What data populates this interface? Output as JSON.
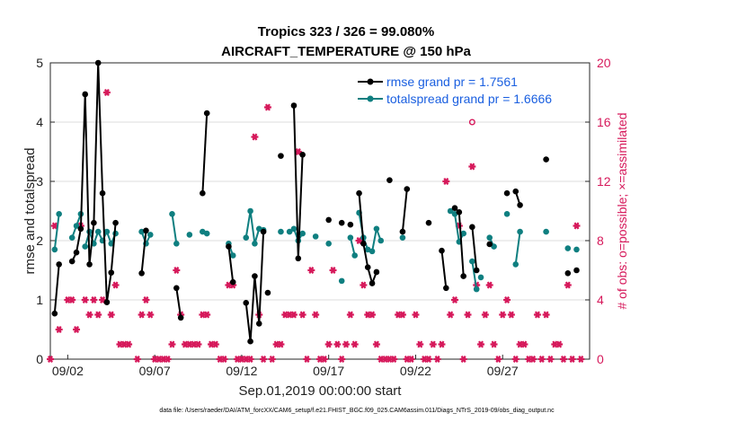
{
  "chart_data": {
    "type": "line",
    "title": "Tropics 323 / 326 = 99.080%",
    "subtitle": "AIRCRAFT_TEMPERATURE @ 150 hPa",
    "xlabel": "Sep.01,2019 00:00:00 start",
    "ylabel": "rmse and totalspread",
    "ylabel_right": "# of obs: o=possible; ×=assimilated",
    "footer": "data file: /Users/raeder/DAI/ATM_forcXX/CAM6_setup/f.e21.FHIST_BGC.f09_025.CAM6assim.011/Diags_NTrS_2019-09/obs_diag_output.nc",
    "xlim": [
      1,
      32
    ],
    "ylim": [
      0,
      5
    ],
    "ylim_right": [
      0,
      20
    ],
    "xticks": [
      2,
      7,
      12,
      17,
      22,
      27
    ],
    "xtick_labels": [
      "09/02",
      "09/07",
      "09/12",
      "09/17",
      "09/22",
      "09/27"
    ],
    "yticks": [
      "0",
      "1",
      "2",
      "3",
      "4",
      "5"
    ],
    "yticks_right": [
      "0",
      "4",
      "8",
      "12",
      "16",
      "20"
    ],
    "legend_position": "top-right",
    "colors": {
      "rmse": "#000000",
      "spread": "#0f7f80",
      "obs": "#d6195b",
      "legend_text": "#1a5fe0"
    },
    "series": [
      {
        "name": "rmse grand pr = 1.7561",
        "key": "rmse",
        "segments": [
          [
            [
              1.25,
              0.77
            ],
            [
              1.5,
              1.6
            ]
          ],
          [
            [
              2.25,
              1.65
            ],
            [
              2.5,
              1.8
            ],
            [
              2.75,
              2.2
            ],
            [
              3.0,
              4.47
            ],
            [
              3.25,
              1.6
            ],
            [
              3.5,
              2.3
            ],
            [
              3.75,
              5.0
            ],
            [
              4.0,
              2.8
            ],
            [
              4.25,
              0.96
            ],
            [
              4.5,
              1.46
            ],
            [
              4.75,
              2.3
            ]
          ],
          [
            [
              6.25,
              1.45
            ],
            [
              6.5,
              2.17
            ]
          ],
          [
            [
              8.25,
              1.2
            ],
            [
              8.5,
              0.7
            ]
          ],
          [
            [
              9.75,
              2.8
            ],
            [
              10.0,
              4.15
            ]
          ],
          [
            [
              11.25,
              1.9
            ],
            [
              11.5,
              1.3
            ]
          ],
          [
            [
              12.25,
              0.95
            ],
            [
              12.5,
              0.3
            ],
            [
              12.75,
              1.4
            ],
            [
              13.0,
              0.6
            ],
            [
              13.25,
              2.15
            ]
          ],
          [
            [
              13.5,
              1.12
            ]
          ],
          [
            [
              14.25,
              3.43
            ]
          ],
          [
            [
              15.0,
              4.28
            ],
            [
              15.25,
              1.7
            ],
            [
              15.5,
              3.45
            ]
          ],
          [
            [
              17.0,
              2.35
            ]
          ],
          [
            [
              17.75,
              2.3
            ]
          ],
          [
            [
              18.25,
              2.27
            ]
          ],
          [
            [
              18.75,
              2.8
            ],
            [
              19.0,
              1.95
            ],
            [
              19.25,
              1.55
            ],
            [
              19.5,
              1.28
            ],
            [
              19.75,
              1.47
            ]
          ],
          [
            [
              20.5,
              3.02
            ]
          ],
          [
            [
              21.25,
              2.15
            ],
            [
              21.5,
              2.87
            ]
          ],
          [
            [
              22.75,
              2.3
            ]
          ],
          [
            [
              23.5,
              1.83
            ],
            [
              23.75,
              1.2
            ]
          ],
          [
            [
              24.25,
              2.55
            ],
            [
              24.5,
              2.48
            ],
            [
              24.75,
              1.4
            ]
          ],
          [
            [
              25.25,
              2.23
            ],
            [
              25.5,
              1.5
            ]
          ],
          [
            [
              26.25,
              1.94
            ]
          ],
          [
            [
              27.25,
              2.8
            ]
          ],
          [
            [
              27.75,
              2.83
            ],
            [
              28.0,
              2.6
            ]
          ],
          [
            [
              29.5,
              3.37
            ]
          ],
          [
            [
              30.75,
              1.45
            ]
          ],
          [
            [
              31.25,
              1.5
            ]
          ]
        ]
      },
      {
        "name": "totalspread grand pr = 1.6666",
        "key": "spread",
        "segments": [
          [
            [
              1.25,
              1.85
            ],
            [
              1.5,
              2.45
            ]
          ],
          [
            [
              2.25,
              2.05
            ],
            [
              2.5,
              2.25
            ],
            [
              2.75,
              2.45
            ]
          ],
          [
            [
              3.0,
              1.9
            ],
            [
              3.25,
              2.15
            ],
            [
              3.5,
              1.95
            ],
            [
              3.75,
              2.15
            ],
            [
              4.0,
              2.0
            ],
            [
              4.25,
              2.15
            ],
            [
              4.5,
              1.95
            ],
            [
              4.75,
              2.12
            ]
          ],
          [
            [
              6.25,
              2.15
            ],
            [
              6.5,
              1.95
            ],
            [
              6.75,
              2.1
            ]
          ],
          [
            [
              8.0,
              2.45
            ],
            [
              8.25,
              1.95
            ]
          ],
          [
            [
              9.0,
              2.1
            ]
          ],
          [
            [
              9.75,
              2.15
            ],
            [
              10.0,
              2.12
            ]
          ],
          [
            [
              11.25,
              1.95
            ],
            [
              11.5,
              1.75
            ]
          ],
          [
            [
              12.25,
              2.05
            ],
            [
              12.5,
              2.5
            ],
            [
              12.75,
              1.95
            ],
            [
              13.0,
              2.2
            ],
            [
              13.25,
              2.18
            ]
          ],
          [
            [
              14.25,
              2.15
            ]
          ],
          [
            [
              14.75,
              2.15
            ],
            [
              15.0,
              2.2
            ],
            [
              15.25,
              2.0
            ],
            [
              15.5,
              2.12
            ]
          ],
          [
            [
              16.25,
              2.07
            ]
          ],
          [
            [
              17.0,
              1.95
            ]
          ],
          [
            [
              17.75,
              1.32
            ]
          ],
          [
            [
              18.25,
              2.05
            ],
            [
              18.5,
              1.75
            ]
          ],
          [
            [
              18.75,
              2.47
            ],
            [
              19.0,
              2.05
            ],
            [
              19.25,
              1.85
            ],
            [
              19.5,
              1.82
            ],
            [
              19.75,
              2.2
            ],
            [
              20.0,
              2.0
            ]
          ],
          [
            [
              21.25,
              2.05
            ]
          ],
          [
            [
              24.0,
              2.5
            ],
            [
              24.25,
              2.45
            ],
            [
              24.5,
              1.98
            ],
            [
              24.75,
              2.12
            ]
          ],
          [
            [
              25.25,
              1.65
            ],
            [
              25.5,
              1.18
            ]
          ],
          [
            [
              25.75,
              1.38
            ]
          ],
          [
            [
              26.25,
              2.05
            ],
            [
              26.5,
              1.9
            ]
          ],
          [
            [
              27.25,
              2.45
            ]
          ],
          [
            [
              27.75,
              1.6
            ],
            [
              28.0,
              2.15
            ]
          ],
          [
            [
              29.5,
              2.15
            ]
          ],
          [
            [
              30.75,
              1.87
            ]
          ],
          [
            [
              31.25,
              1.85
            ]
          ]
        ]
      }
    ],
    "obs_assimilated": [
      [
        1.0,
        0
      ],
      [
        1.25,
        9
      ],
      [
        1.5,
        2
      ],
      [
        2.0,
        4
      ],
      [
        2.25,
        4
      ],
      [
        2.5,
        2
      ],
      [
        2.75,
        9
      ],
      [
        3.0,
        4
      ],
      [
        3.25,
        3
      ],
      [
        3.5,
        4
      ],
      [
        3.75,
        3
      ],
      [
        4.0,
        4
      ],
      [
        4.25,
        18
      ],
      [
        4.5,
        3
      ],
      [
        4.75,
        5
      ],
      [
        5.0,
        1
      ],
      [
        5.25,
        1
      ],
      [
        5.5,
        1
      ],
      [
        6.0,
        0
      ],
      [
        6.25,
        3
      ],
      [
        6.5,
        4
      ],
      [
        6.75,
        3
      ],
      [
        7.0,
        0
      ],
      [
        7.25,
        0
      ],
      [
        7.5,
        0
      ],
      [
        7.75,
        0
      ],
      [
        8.0,
        1
      ],
      [
        8.25,
        6
      ],
      [
        8.5,
        3
      ],
      [
        8.75,
        1
      ],
      [
        9.0,
        1
      ],
      [
        9.25,
        1
      ],
      [
        9.5,
        1
      ],
      [
        9.75,
        3
      ],
      [
        10.0,
        3
      ],
      [
        10.25,
        1
      ],
      [
        10.5,
        1
      ],
      [
        10.75,
        0
      ],
      [
        11.0,
        0
      ],
      [
        11.25,
        5
      ],
      [
        11.5,
        5
      ],
      [
        11.75,
        0
      ],
      [
        12.0,
        0
      ],
      [
        12.25,
        0
      ],
      [
        12.5,
        0
      ],
      [
        12.75,
        15
      ],
      [
        13.0,
        3
      ],
      [
        13.25,
        0
      ],
      [
        13.5,
        17
      ],
      [
        13.75,
        0
      ],
      [
        14.0,
        1
      ],
      [
        14.25,
        1
      ],
      [
        14.5,
        3
      ],
      [
        14.75,
        3
      ],
      [
        15.0,
        3
      ],
      [
        15.25,
        14
      ],
      [
        15.5,
        3
      ],
      [
        15.75,
        0
      ],
      [
        16.0,
        6
      ],
      [
        16.25,
        3
      ],
      [
        16.5,
        0
      ],
      [
        16.75,
        0
      ],
      [
        17.0,
        1
      ],
      [
        17.25,
        6
      ],
      [
        17.5,
        1
      ],
      [
        17.75,
        0
      ],
      [
        18.0,
        1
      ],
      [
        18.25,
        3
      ],
      [
        18.5,
        1
      ],
      [
        18.75,
        8
      ],
      [
        19.0,
        5
      ],
      [
        19.25,
        3
      ],
      [
        19.5,
        3
      ],
      [
        19.75,
        1
      ],
      [
        20.0,
        0
      ],
      [
        20.25,
        0
      ],
      [
        20.5,
        0
      ],
      [
        20.75,
        0
      ],
      [
        21.0,
        3
      ],
      [
        21.25,
        3
      ],
      [
        21.5,
        0
      ],
      [
        21.75,
        0
      ],
      [
        22.0,
        3
      ],
      [
        22.25,
        1
      ],
      [
        22.5,
        0
      ],
      [
        22.75,
        0
      ],
      [
        23.0,
        1
      ],
      [
        23.25,
        0
      ],
      [
        23.5,
        1
      ],
      [
        23.75,
        12
      ],
      [
        24.0,
        3
      ],
      [
        24.25,
        4
      ],
      [
        24.5,
        9
      ],
      [
        24.75,
        0
      ],
      [
        25.0,
        3
      ],
      [
        25.25,
        13
      ],
      [
        25.5,
        5
      ],
      [
        25.75,
        1
      ],
      [
        26.0,
        3
      ],
      [
        26.25,
        5
      ],
      [
        26.5,
        1
      ],
      [
        26.75,
        0
      ],
      [
        27.0,
        3
      ],
      [
        27.25,
        4
      ],
      [
        27.5,
        3
      ],
      [
        27.75,
        0
      ],
      [
        28.0,
        1
      ],
      [
        28.25,
        1
      ],
      [
        28.5,
        0
      ],
      [
        28.75,
        0
      ],
      [
        29.0,
        3
      ],
      [
        29.25,
        0
      ],
      [
        29.5,
        3
      ],
      [
        29.75,
        0
      ],
      [
        30.0,
        1
      ],
      [
        30.25,
        1
      ],
      [
        30.5,
        0
      ],
      [
        30.75,
        5
      ],
      [
        31.0,
        0
      ],
      [
        31.25,
        9
      ],
      [
        31.5,
        0
      ]
    ],
    "obs_possible_only": [
      [
        25.25,
        16
      ]
    ]
  }
}
